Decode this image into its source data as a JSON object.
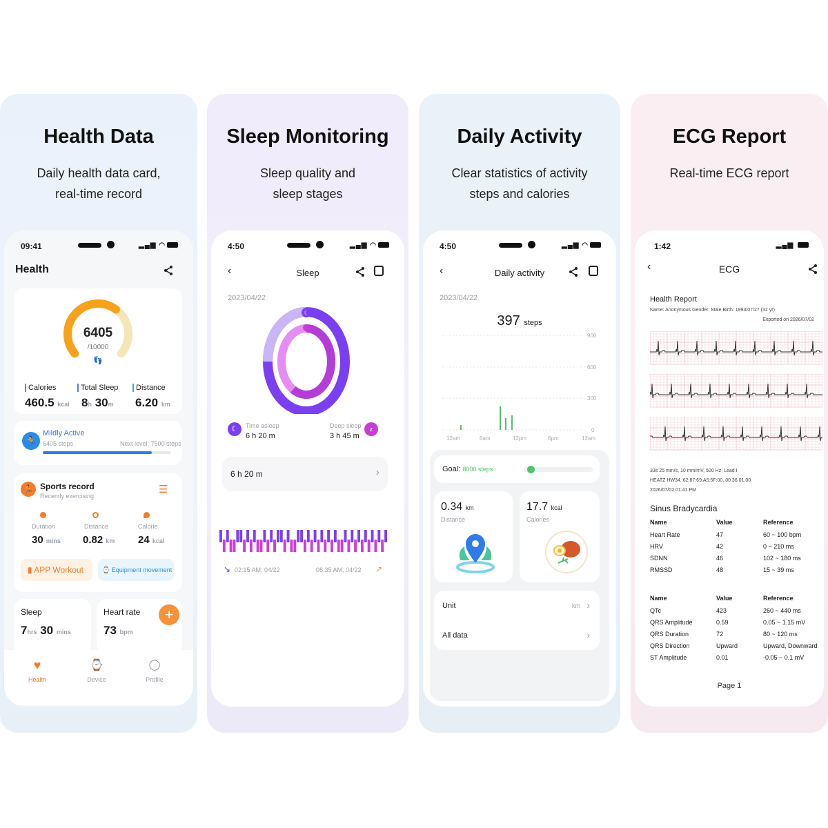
{
  "panels": [
    {
      "title": "Health Data",
      "subtitle_line1": "Daily health data card,",
      "subtitle_line2": "real-time record"
    },
    {
      "title": "Sleep Monitoring",
      "subtitle_line1": "Sleep quality and",
      "subtitle_line2": "sleep stages"
    },
    {
      "title": "Daily Activity",
      "subtitle_line1": "Clear statistics of activity",
      "subtitle_line2": "steps and calories"
    },
    {
      "title": "ECG Report",
      "subtitle_line1": "Real-time ECG report",
      "subtitle_line2": ""
    }
  ],
  "health": {
    "time": "09:41",
    "header": "Health",
    "steps": "6405",
    "steps_goal": "/10000",
    "steps_progress": 0.64,
    "calories_label": "Calories",
    "calories_value": "460.5",
    "calories_unit": "kcal",
    "sleep_label": "Total Sleep",
    "sleep_h": "8",
    "sleep_h_unit": "h",
    "sleep_m": "30",
    "sleep_m_unit": "m",
    "distance_label": "Distance",
    "distance_value": "6.20",
    "distance_unit": "km",
    "activity_level": "Mildly Active",
    "activity_steps": "6405 steps",
    "next_level_label": "Next level:",
    "next_level_value": "7500",
    "next_level_unit": "steps",
    "activity_progress": 0.85,
    "sports_title": "Sports record",
    "sports_sub": "Recently exercising",
    "duration_label": "Duration",
    "duration_value": "30",
    "duration_unit": "mins",
    "sdistance_label": "Distance",
    "sdistance_value": "0.82",
    "sdistance_unit": "km",
    "calorie_label": "Calorie",
    "calorie_value": "24",
    "calorie_unit": "kcal",
    "app_workout": "APP Workout",
    "equipment": "Equipment movement",
    "sleep_card_title": "Sleep",
    "sleep_card_h": "7",
    "sleep_card_h_unit": "hrs",
    "sleep_card_m": "30",
    "sleep_card_m_unit": "mins",
    "hr_title": "Heart rate",
    "hr_value": "73",
    "hr_unit": "bpm",
    "nav_health": "Health",
    "nav_device": "Device",
    "nav_profile": "Profile"
  },
  "sleep": {
    "time": "4:50",
    "header": "Sleep",
    "date": "2023/04/22",
    "time_asleep_label": "Time asleep",
    "time_asleep_value": "6 h 20 m",
    "deep_sleep_label": "Deep sleep",
    "deep_sleep_value": "3 h 45 m",
    "summary": "6 h 20 m",
    "start": "02:15 AM, 04/22",
    "end": "08:35 AM, 04/22",
    "deep_fraction": 0.59,
    "stages": [
      "light",
      "deep",
      "light",
      "deep",
      "deep",
      "light",
      "light",
      "deep",
      "light",
      "deep",
      "light",
      "deep",
      "deep",
      "light",
      "deep",
      "light",
      "deep",
      "light",
      "light",
      "deep",
      "light",
      "deep",
      "deep",
      "light",
      "light",
      "deep",
      "light",
      "deep",
      "light",
      "deep",
      "light",
      "deep",
      "light",
      "deep",
      "light",
      "deep",
      "deep",
      "light",
      "deep",
      "light",
      "deep",
      "light",
      "deep",
      "light",
      "deep",
      "light",
      "deep",
      "light",
      "deep",
      "light"
    ]
  },
  "activity": {
    "time": "4:50",
    "header": "Daily activity",
    "date": "2023/04/22",
    "steps_value": "397",
    "steps_unit": "steps",
    "y_ticks": [
      "900",
      "600",
      "300",
      "0"
    ],
    "x_ticks": [
      "12am",
      "6am",
      "12pm",
      "6pm",
      "12am"
    ],
    "goal_label": "Goal:",
    "goal_value": "8000 steps",
    "goal_progress": 0.05,
    "distance_value": "0.34",
    "distance_unit": "km",
    "distance_label": "Distance",
    "calories_value": "17.7",
    "calories_unit": "kcal",
    "calories_label": "Calories",
    "unit_label": "Unit",
    "unit_value": "km",
    "all_data_label": "All data"
  },
  "ecg": {
    "time": "1:42",
    "header": "ECG",
    "report_title": "Health Report",
    "meta_line": "Name: Anonymous    Gender: Male    Birth: 1993/07/27 (32 yr)",
    "exported": "Exported on 2026/07/02",
    "strip_info1": "33s 25 mm/s, 10 mm/mV, 500 Hz, Lead I",
    "strip_info2": "HEATZ HW34, 62:87:69:A5:5F:00, 00.36.01.00",
    "strip_info3": "2026/07/02 01:41 PM",
    "diagnosis": "Sinus Bradycardia",
    "col_name": "Name",
    "col_value": "Value",
    "col_ref": "Reference",
    "table1": [
      {
        "name": "Heart Rate",
        "value": "47",
        "ref": "60 ~ 100 bpm"
      },
      {
        "name": "HRV",
        "value": "42",
        "ref": "0 ~ 210 ms"
      },
      {
        "name": "SDNN",
        "value": "46",
        "ref": "102 ~ 180 ms"
      },
      {
        "name": "RMSSD",
        "value": "48",
        "ref": "15 ~ 39 ms"
      }
    ],
    "table2": [
      {
        "name": "QTc",
        "value": "423",
        "ref": "260 ~ 440 ms"
      },
      {
        "name": "QRS Amplitude",
        "value": "0.59",
        "ref": "0.05 ~ 1.15 mV"
      },
      {
        "name": "QRS Duration",
        "value": "72",
        "ref": "80 ~ 120 ms"
      },
      {
        "name": "QRS Direction",
        "value": "Upward",
        "ref": "Upward, Downward"
      },
      {
        "name": "ST Amplitude",
        "value": "0.01",
        "ref": "-0.05 ~ 0.1 mV"
      }
    ],
    "page": "Page 1"
  }
}
